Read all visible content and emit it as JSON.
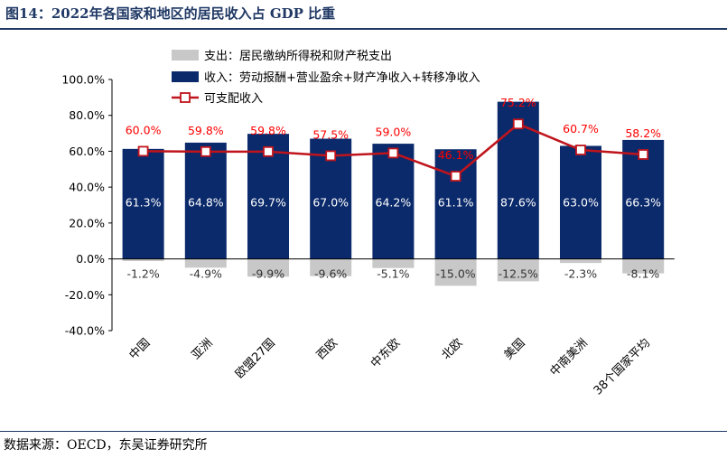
{
  "header": {
    "title": "图14：2022年各国家和地区的居民收入占 GDP 比重"
  },
  "footer": {
    "source": "数据来源：OECD，东吴证券研究所"
  },
  "chart_data": {
    "type": "bar",
    "categories": [
      "中国",
      "亚洲",
      "欧盟27国",
      "西欧",
      "中东欧",
      "北欧",
      "美国",
      "中南美洲",
      "38个国家平均"
    ],
    "ylim": [
      -40,
      100
    ],
    "yticks": [
      -40,
      -20,
      0,
      20,
      40,
      60,
      80,
      100
    ],
    "ytick_labels": [
      "-40.0%",
      "-20.0%",
      "0.0%",
      "20.0%",
      "40.0%",
      "60.0%",
      "80.0%",
      "100.0%"
    ],
    "grid": false,
    "legend_position": "top",
    "series": [
      {
        "name": "支出：居民缴纳所得税和财产税支出",
        "kind": "bar",
        "color": "#c8c8c8",
        "values": [
          -1.2,
          -4.9,
          -9.9,
          -9.6,
          -5.1,
          -15.0,
          -12.5,
          -2.3,
          -8.1
        ],
        "labels": [
          "-1.2%",
          "-4.9%",
          "-9.9%",
          "-9.6%",
          "-5.1%",
          "-15.0%",
          "-12.5%",
          "-2.3%",
          "-8.1%"
        ]
      },
      {
        "name": "收入：劳动报酬+营业盈余+财产净收入+转移净收入",
        "kind": "bar",
        "color": "#0b2a6b",
        "values": [
          61.3,
          64.8,
          69.7,
          67.0,
          64.2,
          61.1,
          87.6,
          63.0,
          66.3
        ],
        "labels": [
          "61.3%",
          "64.8%",
          "69.7%",
          "67.0%",
          "64.2%",
          "61.1%",
          "87.6%",
          "63.0%",
          "66.3%"
        ]
      },
      {
        "name": "可支配收入",
        "kind": "line",
        "color": "#c0141c",
        "label_color": "#ff0000",
        "values": [
          60.0,
          59.8,
          59.8,
          57.5,
          59.0,
          46.1,
          75.2,
          60.7,
          58.2
        ],
        "labels": [
          "60.0%",
          "59.8%",
          "59.8%",
          "57.5%",
          "59.0%",
          "46.1%",
          "75.2%",
          "60.7%",
          "58.2%"
        ]
      }
    ]
  }
}
